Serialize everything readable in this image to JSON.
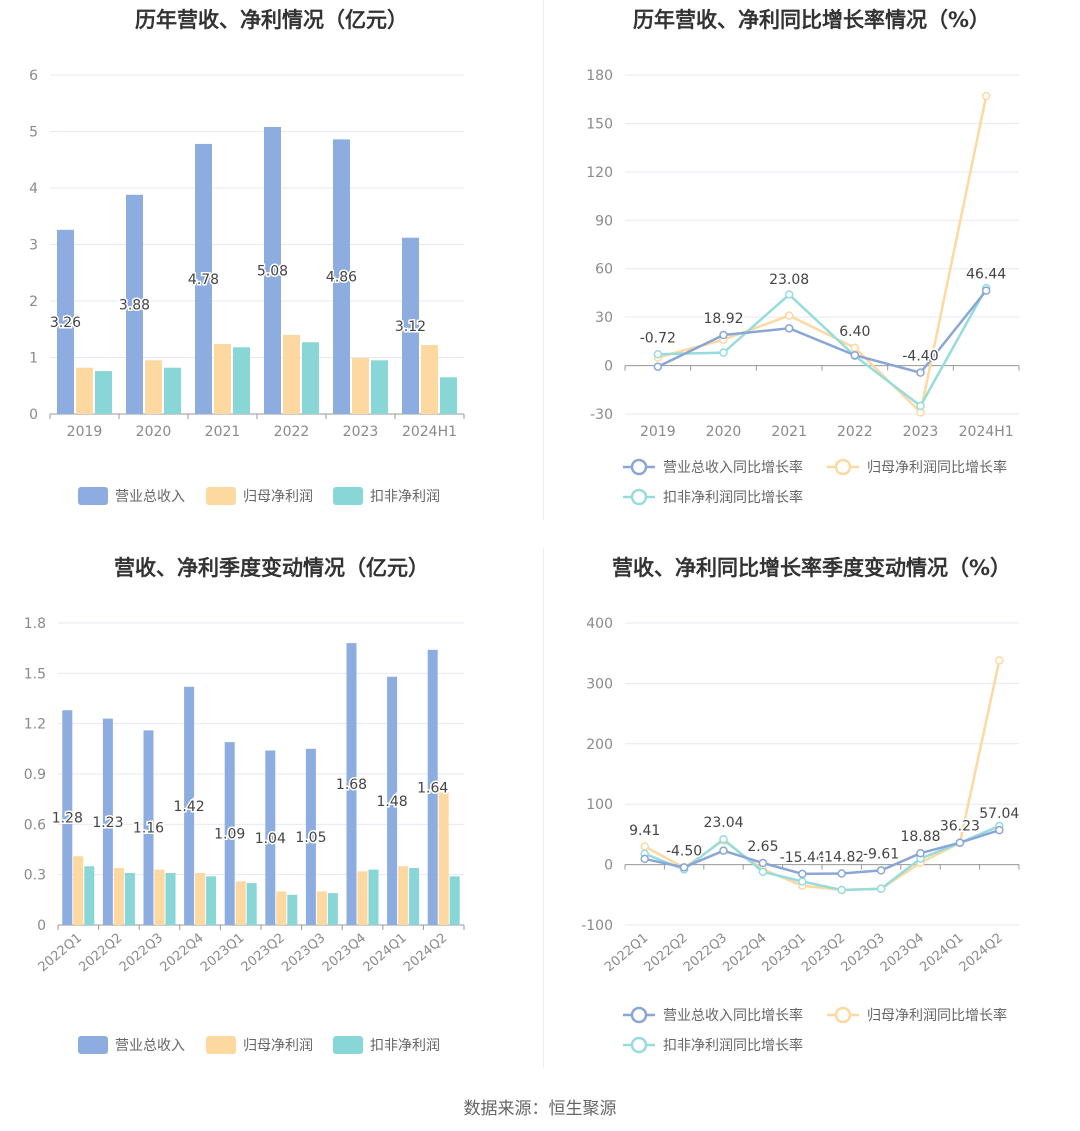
{
  "colors": {
    "revenue": "#8dade0",
    "net_profit": "#fdd8a0",
    "deducted_profit": "#88d6d6"
  },
  "charts": [
    {
      "title": "历年营收、净利情况（亿元）",
      "chart_data": {
        "type": "bar",
        "categories": [
          "2019",
          "2020",
          "2021",
          "2022",
          "2023",
          "2024H1"
        ],
        "series": [
          {
            "name": "营业总收入",
            "values": [
              3.26,
              3.88,
              4.78,
              5.08,
              4.86,
              3.12
            ]
          },
          {
            "name": "归母净利润",
            "values": [
              0.82,
              0.95,
              1.24,
              1.4,
              0.99,
              1.22
            ]
          },
          {
            "name": "扣非净利润",
            "values": [
              0.76,
              0.82,
              1.18,
              1.27,
              0.95,
              0.65
            ]
          }
        ],
        "data_labels": [
          "3.26",
          "3.88",
          "4.78",
          "5.08",
          "4.86",
          "3.12"
        ],
        "yticks": [
          "0",
          "1",
          "2",
          "3",
          "4",
          "5",
          "6"
        ],
        "ylim": [
          0,
          6
        ],
        "legend": "bottom"
      }
    },
    {
      "title": "历年营收、净利同比增长率情况（%）",
      "chart_data": {
        "type": "line",
        "categories": [
          "2019",
          "2020",
          "2021",
          "2022",
          "2023",
          "2024H1"
        ],
        "series": [
          {
            "name": "营业总收入同比增长率",
            "values": [
              -0.72,
              18.92,
              23.08,
              6.4,
              -4.4,
              46.44
            ]
          },
          {
            "name": "归母净利润同比增长率",
            "values": [
              5,
              16,
              31,
              11,
              -29,
              167
            ]
          },
          {
            "name": "扣非净利润同比增长率",
            "values": [
              7,
              8,
              44,
              6,
              -25,
              48
            ]
          }
        ],
        "data_labels": [
          "-0.72",
          "18.92",
          "23.08",
          "6.40",
          "-4.40",
          "46.44"
        ],
        "yticks": [
          "-30",
          "0",
          "30",
          "60",
          "90",
          "120",
          "150",
          "180"
        ],
        "ylim": [
          -30,
          180
        ],
        "legend": "bottom"
      }
    },
    {
      "title": "营收、净利季度变动情况（亿元）",
      "chart_data": {
        "type": "bar",
        "categories": [
          "2022Q1",
          "2022Q2",
          "2022Q3",
          "2022Q4",
          "2023Q1",
          "2023Q2",
          "2023Q3",
          "2023Q4",
          "2024Q1",
          "2024Q2"
        ],
        "series": [
          {
            "name": "营业总收入",
            "values": [
              1.28,
              1.23,
              1.16,
              1.42,
              1.09,
              1.04,
              1.05,
              1.68,
              1.48,
              1.64
            ]
          },
          {
            "name": "归母净利润",
            "values": [
              0.41,
              0.34,
              0.33,
              0.31,
              0.26,
              0.2,
              0.2,
              0.32,
              0.35,
              0.79
            ]
          },
          {
            "name": "扣非净利润",
            "values": [
              0.35,
              0.31,
              0.31,
              0.29,
              0.25,
              0.18,
              0.19,
              0.33,
              0.34,
              0.29
            ]
          }
        ],
        "data_labels": [
          "1.28",
          "1.23",
          "1.16",
          "1.42",
          "1.09",
          "1.04",
          "1.05",
          "1.68",
          "1.48",
          "1.64"
        ],
        "yticks": [
          "0",
          "0.3",
          "0.6",
          "0.9",
          "1.2",
          "1.5",
          "1.8"
        ],
        "ylim": [
          0,
          1.8
        ],
        "legend": "bottom"
      }
    },
    {
      "title": "营收、净利同比增长率季度变动情况（%）",
      "chart_data": {
        "type": "line",
        "categories": [
          "2022Q1",
          "2022Q2",
          "2022Q3",
          "2022Q4",
          "2023Q1",
          "2023Q2",
          "2023Q3",
          "2023Q4",
          "2024Q1",
          "2024Q2"
        ],
        "series": [
          {
            "name": "营业总收入同比增长率",
            "values": [
              9.41,
              -4.5,
              23.04,
              2.65,
              -15.44,
              -14.82,
              -9.61,
              18.88,
              36.23,
              57.04
            ]
          },
          {
            "name": "归母净利润同比增长率",
            "values": [
              30,
              -5,
              40,
              -8,
              -35,
              -42,
              -40,
              3,
              36,
              338
            ]
          },
          {
            "name": "扣非净利润同比增长率",
            "values": [
              18,
              -8,
              42,
              -12,
              -28,
              -42,
              -40,
              10,
              36,
              64
            ]
          }
        ],
        "data_labels": [
          "9.41",
          "-4.50",
          "23.04",
          "2.65",
          "-15.44",
          "-14.82",
          "-9.61",
          "18.88",
          "36.23",
          "57.04"
        ],
        "yticks": [
          "-100",
          "0",
          "100",
          "200",
          "300",
          "400"
        ],
        "ylim": [
          -100,
          400
        ],
        "legend": "bottom"
      }
    }
  ],
  "source": "数据来源：恒生聚源"
}
